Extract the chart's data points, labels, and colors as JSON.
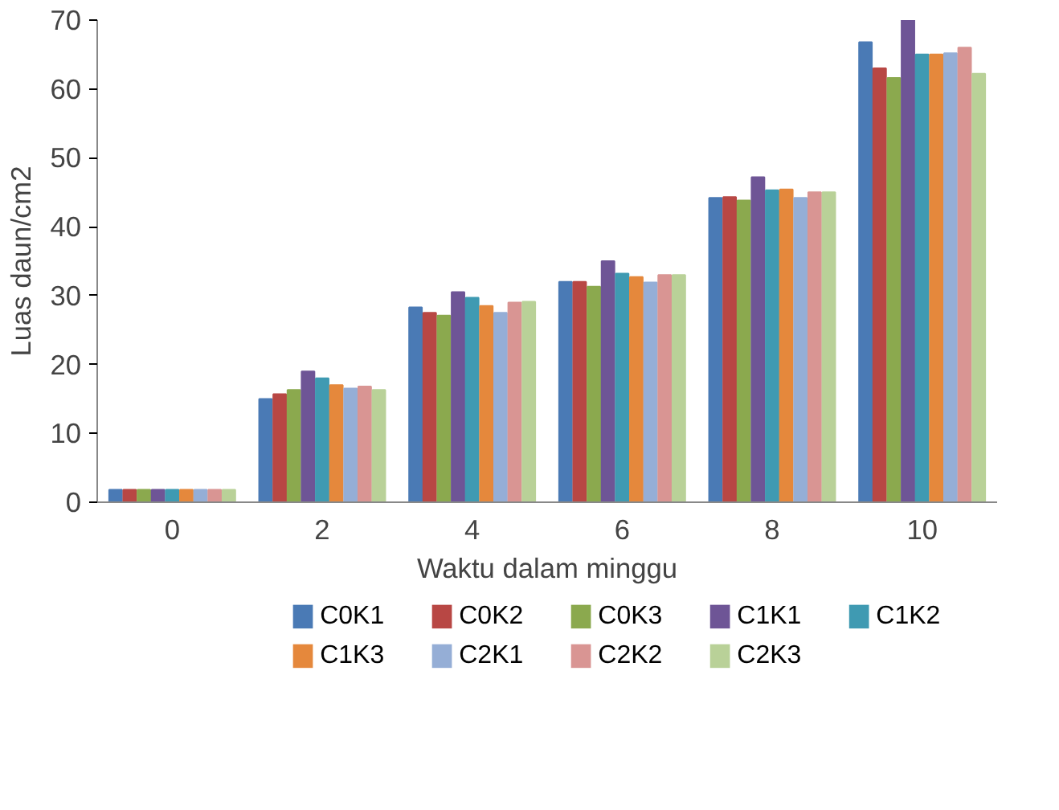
{
  "chart_data": {
    "type": "bar",
    "xlabel": "Waktu dalam minggu",
    "ylabel": "Luas daun/cm2",
    "categories": [
      "0",
      "2",
      "4",
      "6",
      "8",
      "10"
    ],
    "series": [
      {
        "name": "C0K1",
        "color": "#4a7ab5",
        "values": [
          1.8,
          15,
          28.3,
          32,
          44.2,
          66.8
        ]
      },
      {
        "name": "C0K2",
        "color": "#b84744",
        "values": [
          1.8,
          15.7,
          27.5,
          32,
          44.3,
          63
        ]
      },
      {
        "name": "C0K3",
        "color": "#8ba94e",
        "values": [
          1.8,
          16.3,
          27.1,
          31.3,
          43.8,
          61.6
        ]
      },
      {
        "name": "C1K1",
        "color": "#6e5596",
        "values": [
          1.8,
          19,
          30.5,
          35,
          47.2,
          70
        ]
      },
      {
        "name": "C1K2",
        "color": "#3f9ab2",
        "values": [
          1.8,
          18,
          29.7,
          33.2,
          45.3,
          65
        ]
      },
      {
        "name": "C1K3",
        "color": "#e5883c",
        "values": [
          1.8,
          17,
          28.5,
          32.7,
          45.4,
          65
        ]
      },
      {
        "name": "C2K1",
        "color": "#95aed6",
        "values": [
          1.8,
          16.5,
          27.5,
          31.9,
          44.2,
          65.2
        ]
      },
      {
        "name": "C2K2",
        "color": "#d99593",
        "values": [
          1.8,
          16.8,
          29,
          33,
          45,
          66
        ]
      },
      {
        "name": "C2K3",
        "color": "#b9d198",
        "values": [
          1.8,
          16.3,
          29.1,
          33,
          45,
          62.2
        ]
      }
    ],
    "ylim": [
      0,
      70
    ],
    "yticks": [
      0,
      10,
      20,
      30,
      40,
      50,
      60,
      70
    ],
    "grid": false,
    "legend": "bottom"
  }
}
